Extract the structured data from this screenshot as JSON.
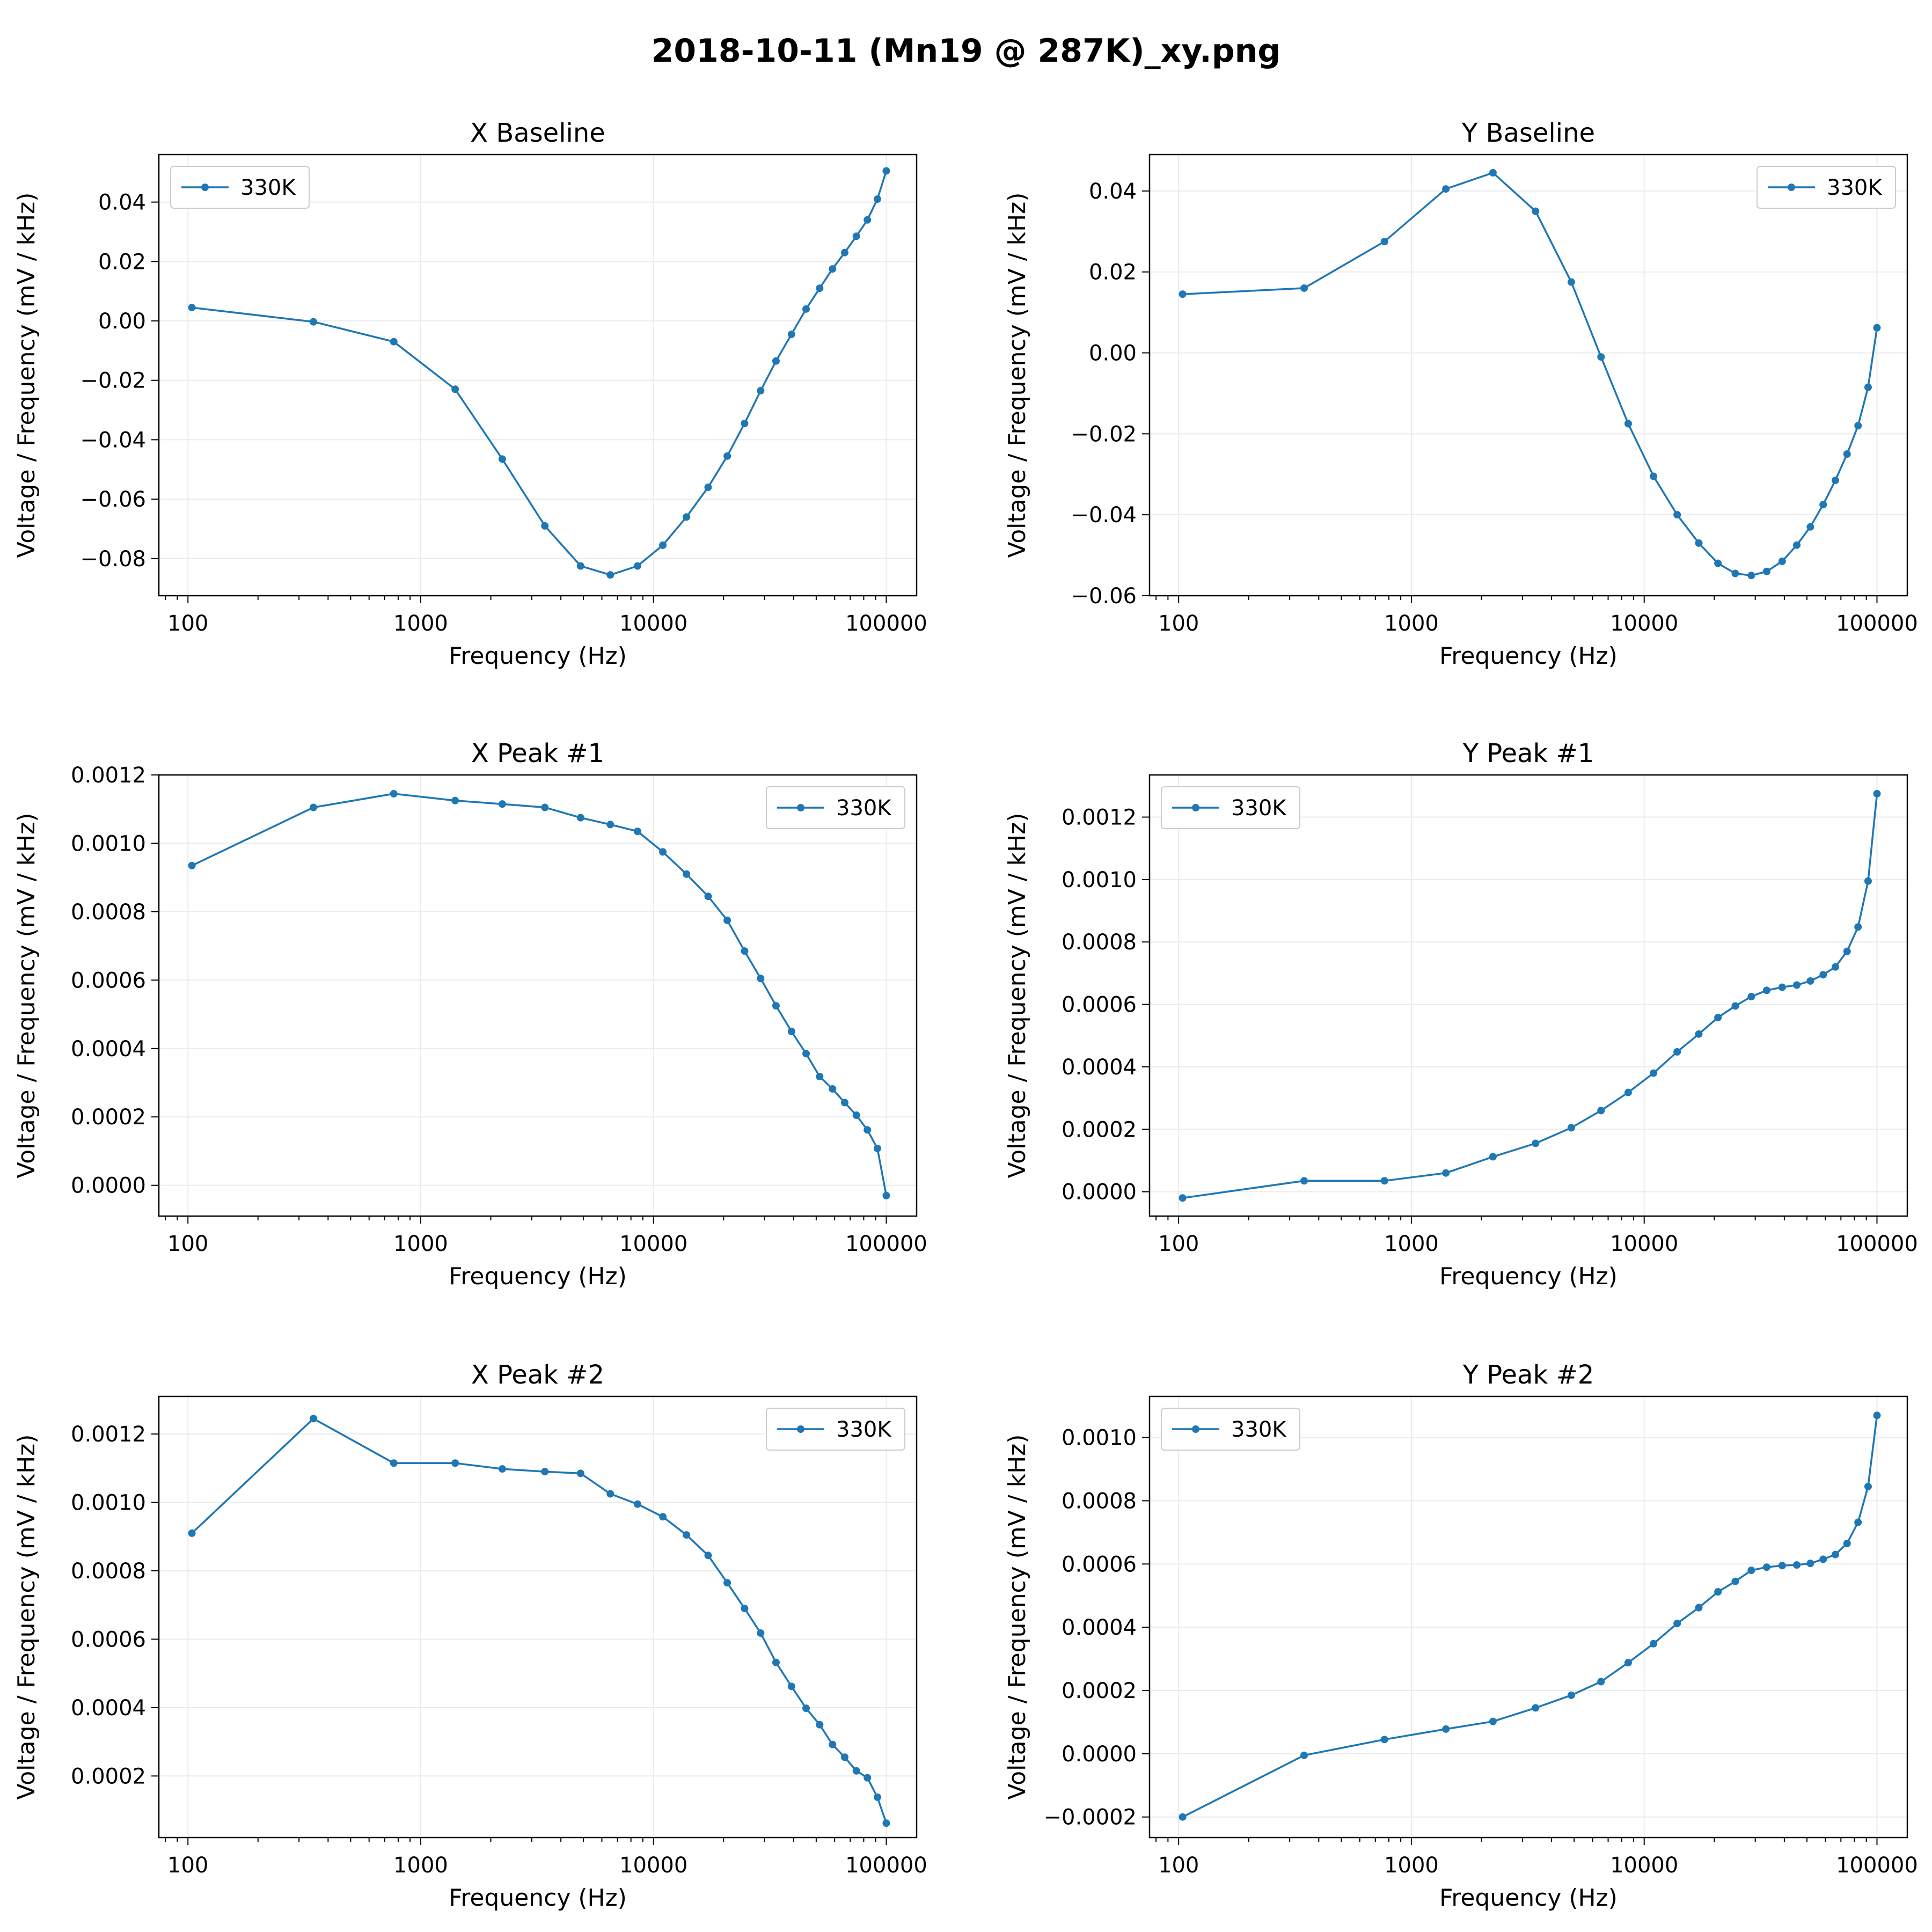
{
  "figure": {
    "title": "2018-10-11 (Mn19 @ 287K)_xy.png",
    "series_color": "#1f77b4"
  },
  "chart_data": [
    {
      "type": "line",
      "title": "X Baseline",
      "xlabel": "Frequency (Hz)",
      "ylabel": "Voltage / Frequency (mV / kHz)",
      "xscale": "log",
      "xlim": [
        75,
        135000
      ],
      "ylim": [
        -0.0925,
        0.056
      ],
      "xticks": [
        100,
        1000,
        10000,
        100000
      ],
      "xtick_labels": [
        "100",
        "1000",
        "10000",
        "100000"
      ],
      "yticks": [
        0.04,
        0.02,
        0.0,
        -0.02,
        -0.04,
        -0.06,
        -0.08
      ],
      "ytick_labels": [
        "0.04",
        "0.02",
        "0.00",
        "−0.02",
        "−0.04",
        "−0.06",
        "−0.08"
      ],
      "grid": true,
      "legend_position": "upper-left",
      "series": [
        {
          "name": "330K",
          "x": [
            104,
            346,
            766,
            1406,
            2240,
            3414,
            4862,
            6525,
            8537,
            10966,
            13856,
            17164,
            20740,
            24622,
            28851,
            33590,
            39149,
            45234,
            51738,
            58734,
            66265,
            74389,
            82924,
            91600,
            100000
          ],
          "y": [
            0.0045,
            -0.0003,
            -0.007,
            -0.023,
            -0.0465,
            -0.069,
            -0.0825,
            -0.0855,
            -0.0825,
            -0.0755,
            -0.066,
            -0.056,
            -0.0455,
            -0.0345,
            -0.0235,
            -0.0135,
            -0.0045,
            0.004,
            0.011,
            0.0175,
            0.023,
            0.0285,
            0.034,
            0.041,
            0.0505
          ]
        }
      ]
    },
    {
      "type": "line",
      "title": "Y Baseline",
      "xlabel": "Frequency (Hz)",
      "ylabel": "Voltage / Frequency (mV / kHz)",
      "xscale": "log",
      "xlim": [
        75,
        135000
      ],
      "ylim": [
        -0.06,
        0.049
      ],
      "xticks": [
        100,
        1000,
        10000,
        100000
      ],
      "xtick_labels": [
        "100",
        "1000",
        "10000",
        "100000"
      ],
      "yticks": [
        0.04,
        0.02,
        0.0,
        -0.02,
        -0.04,
        -0.06
      ],
      "ytick_labels": [
        "0.04",
        "0.02",
        "0.00",
        "−0.02",
        "−0.04",
        "−0.06"
      ],
      "grid": true,
      "legend_position": "upper-right",
      "series": [
        {
          "name": "330K",
          "x": [
            104,
            346,
            766,
            1406,
            2240,
            3414,
            4862,
            6525,
            8537,
            10966,
            13856,
            17164,
            20740,
            24622,
            28851,
            33590,
            39149,
            45234,
            51738,
            58734,
            66265,
            74389,
            82924,
            91600,
            100000
          ],
          "y": [
            0.0145,
            0.016,
            0.0275,
            0.0405,
            0.0445,
            0.035,
            0.0175,
            -0.001,
            -0.0175,
            -0.0305,
            -0.04,
            -0.047,
            -0.052,
            -0.0545,
            -0.055,
            -0.054,
            -0.0515,
            -0.0475,
            -0.043,
            -0.0375,
            -0.0315,
            -0.025,
            -0.018,
            -0.0085,
            0.0062
          ]
        }
      ]
    },
    {
      "type": "line",
      "title": "X Peak #1",
      "xlabel": "Frequency (Hz)",
      "ylabel": "Voltage / Frequency (mV / kHz)",
      "xscale": "log",
      "xlim": [
        75,
        135000
      ],
      "ylim": [
        -9e-05,
        0.0012
      ],
      "xticks": [
        100,
        1000,
        10000,
        100000
      ],
      "xtick_labels": [
        "100",
        "1000",
        "10000",
        "100000"
      ],
      "yticks": [
        0.0012,
        0.001,
        0.0008,
        0.0006,
        0.0004,
        0.0002,
        0.0
      ],
      "ytick_labels": [
        "0.0012",
        "0.0010",
        "0.0008",
        "0.0006",
        "0.0004",
        "0.0002",
        "0.0000"
      ],
      "grid": true,
      "legend_position": "upper-right",
      "series": [
        {
          "name": "330K",
          "x": [
            104,
            346,
            766,
            1406,
            2240,
            3414,
            4862,
            6525,
            8537,
            10966,
            13856,
            17164,
            20740,
            24622,
            28851,
            33590,
            39149,
            45234,
            51738,
            58734,
            66265,
            74389,
            82924,
            91600,
            100000
          ],
          "y": [
            0.000935,
            0.001105,
            0.001145,
            0.001125,
            0.001115,
            0.001105,
            0.001075,
            0.001055,
            0.001035,
            0.000975,
            0.00091,
            0.000845,
            0.000775,
            0.000685,
            0.000605,
            0.000525,
            0.00045,
            0.000385,
            0.000318,
            0.000282,
            0.000242,
            0.000205,
            0.000162,
            0.000108,
            -3e-05
          ]
        }
      ]
    },
    {
      "type": "line",
      "title": "Y Peak #1",
      "xlabel": "Frequency (Hz)",
      "ylabel": "Voltage / Frequency (mV / kHz)",
      "xscale": "log",
      "xlim": [
        75,
        135000
      ],
      "ylim": [
        -7.8e-05,
        0.001335
      ],
      "xticks": [
        100,
        1000,
        10000,
        100000
      ],
      "xtick_labels": [
        "100",
        "1000",
        "10000",
        "100000"
      ],
      "yticks": [
        0.0012,
        0.001,
        0.0008,
        0.0006,
        0.0004,
        0.0002,
        0.0
      ],
      "ytick_labels": [
        "0.0012",
        "0.0010",
        "0.0008",
        "0.0006",
        "0.0004",
        "0.0002",
        "0.0000"
      ],
      "grid": true,
      "legend_position": "upper-left",
      "series": [
        {
          "name": "330K",
          "x": [
            104,
            346,
            766,
            1406,
            2240,
            3414,
            4862,
            6525,
            8537,
            10966,
            13856,
            17164,
            20740,
            24622,
            28851,
            33590,
            39149,
            45234,
            51738,
            58734,
            66265,
            74389,
            82924,
            91600,
            100000
          ],
          "y": [
            -2e-05,
            3.5e-05,
            3.5e-05,
            6e-05,
            0.000112,
            0.000155,
            0.000205,
            0.00026,
            0.000318,
            0.00038,
            0.000448,
            0.000505,
            0.000558,
            0.000595,
            0.000625,
            0.000645,
            0.000655,
            0.000662,
            0.000675,
            0.000695,
            0.00072,
            0.00077,
            0.000848,
            0.000995,
            0.001275
          ]
        }
      ]
    },
    {
      "type": "line",
      "title": "X Peak #2",
      "xlabel": "Frequency (Hz)",
      "ylabel": "Voltage / Frequency (mV / kHz)",
      "xscale": "log",
      "xlim": [
        75,
        135000
      ],
      "ylim": [
        2e-05,
        0.00131
      ],
      "xticks": [
        100,
        1000,
        10000,
        100000
      ],
      "xtick_labels": [
        "100",
        "1000",
        "10000",
        "100000"
      ],
      "yticks": [
        0.0012,
        0.001,
        0.0008,
        0.0006,
        0.0004,
        0.0002
      ],
      "ytick_labels": [
        "0.0012",
        "0.0010",
        "0.0008",
        "0.0006",
        "0.0004",
        "0.0002"
      ],
      "grid": true,
      "legend_position": "upper-right",
      "series": [
        {
          "name": "330K",
          "x": [
            104,
            346,
            766,
            1406,
            2240,
            3414,
            4862,
            6525,
            8537,
            10966,
            13856,
            17164,
            20740,
            24622,
            28851,
            33590,
            39149,
            45234,
            51738,
            58734,
            66265,
            74389,
            82924,
            91600,
            100000
          ],
          "y": [
            0.00091,
            0.001245,
            0.001115,
            0.001115,
            0.001098,
            0.00109,
            0.001085,
            0.001025,
            0.000995,
            0.000958,
            0.000905,
            0.000845,
            0.000765,
            0.00069,
            0.000618,
            0.000532,
            0.000462,
            0.000398,
            0.00035,
            0.000292,
            0.000255,
            0.000215,
            0.000195,
            0.000138,
            6.2e-05
          ]
        }
      ]
    },
    {
      "type": "line",
      "title": "Y Peak #2",
      "xlabel": "Frequency (Hz)",
      "ylabel": "Voltage / Frequency (mV / kHz)",
      "xscale": "log",
      "xlim": [
        75,
        135000
      ],
      "ylim": [
        -0.000265,
        0.00113
      ],
      "xticks": [
        100,
        1000,
        10000,
        100000
      ],
      "xtick_labels": [
        "100",
        "1000",
        "10000",
        "100000"
      ],
      "yticks": [
        0.001,
        0.0008,
        0.0006,
        0.0004,
        0.0002,
        0.0,
        -0.0002
      ],
      "ytick_labels": [
        "0.0010",
        "0.0008",
        "0.0006",
        "0.0004",
        "0.0002",
        "0.0000",
        "−0.0002"
      ],
      "grid": true,
      "legend_position": "upper-left",
      "series": [
        {
          "name": "330K",
          "x": [
            104,
            346,
            766,
            1406,
            2240,
            3414,
            4862,
            6525,
            8537,
            10966,
            13856,
            17164,
            20740,
            24622,
            28851,
            33590,
            39149,
            45234,
            51738,
            58734,
            66265,
            74389,
            82924,
            91600,
            100000
          ],
          "y": [
            -0.0002,
            -5e-06,
            4.5e-05,
            7.8e-05,
            0.000102,
            0.000145,
            0.000185,
            0.000228,
            0.000288,
            0.000348,
            0.000412,
            0.000462,
            0.000512,
            0.000545,
            0.00058,
            0.00059,
            0.000595,
            0.000597,
            0.000602,
            0.000615,
            0.00063,
            0.000665,
            0.000732,
            0.000845,
            0.00107
          ]
        }
      ]
    }
  ]
}
